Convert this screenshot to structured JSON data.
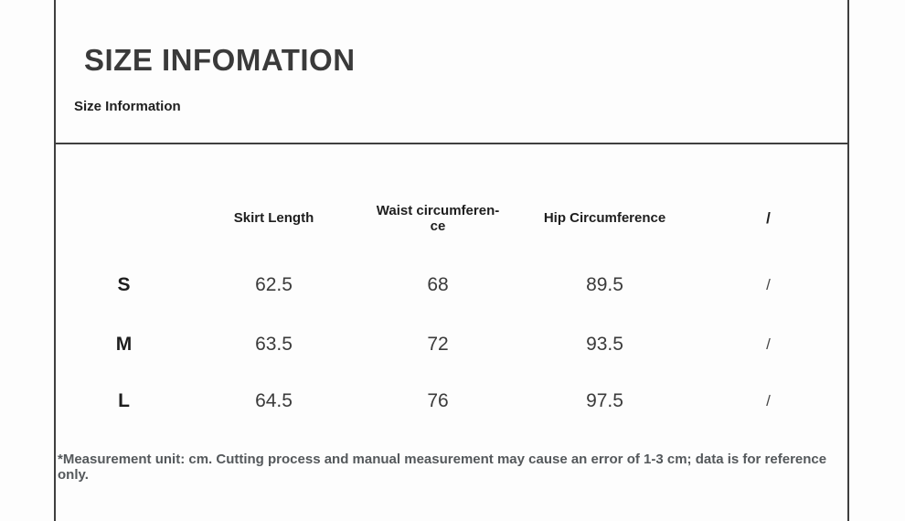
{
  "page": {
    "title": "SIZE INFOMATION",
    "subtitle": "Size Information",
    "footnote": "*Measurement unit: cm. Cutting process and manual measurement may cause an error of 1-3 cm; data is for reference only."
  },
  "size_table": {
    "columns": [
      "",
      "Skirt Length",
      "Waist circumferen-\nce",
      "Hip Circumference",
      "/"
    ],
    "rows": [
      {
        "size": "S",
        "skirt_length": "62.5",
        "waist": "68",
        "hip": "89.5",
        "extra": "/"
      },
      {
        "size": "M",
        "skirt_length": "63.5",
        "waist": "72",
        "hip": "93.5",
        "extra": "/"
      },
      {
        "size": "L",
        "skirt_length": "64.5",
        "waist": "76",
        "hip": "97.5",
        "extra": "/"
      }
    ]
  },
  "colors": {
    "background": "#fdfdfd",
    "frame_line": "#3f3f3f",
    "title_text": "#3a3a3a",
    "body_text": "#1e1e1e",
    "value_text": "#3b3b3b",
    "footnote_text": "#54585b"
  }
}
